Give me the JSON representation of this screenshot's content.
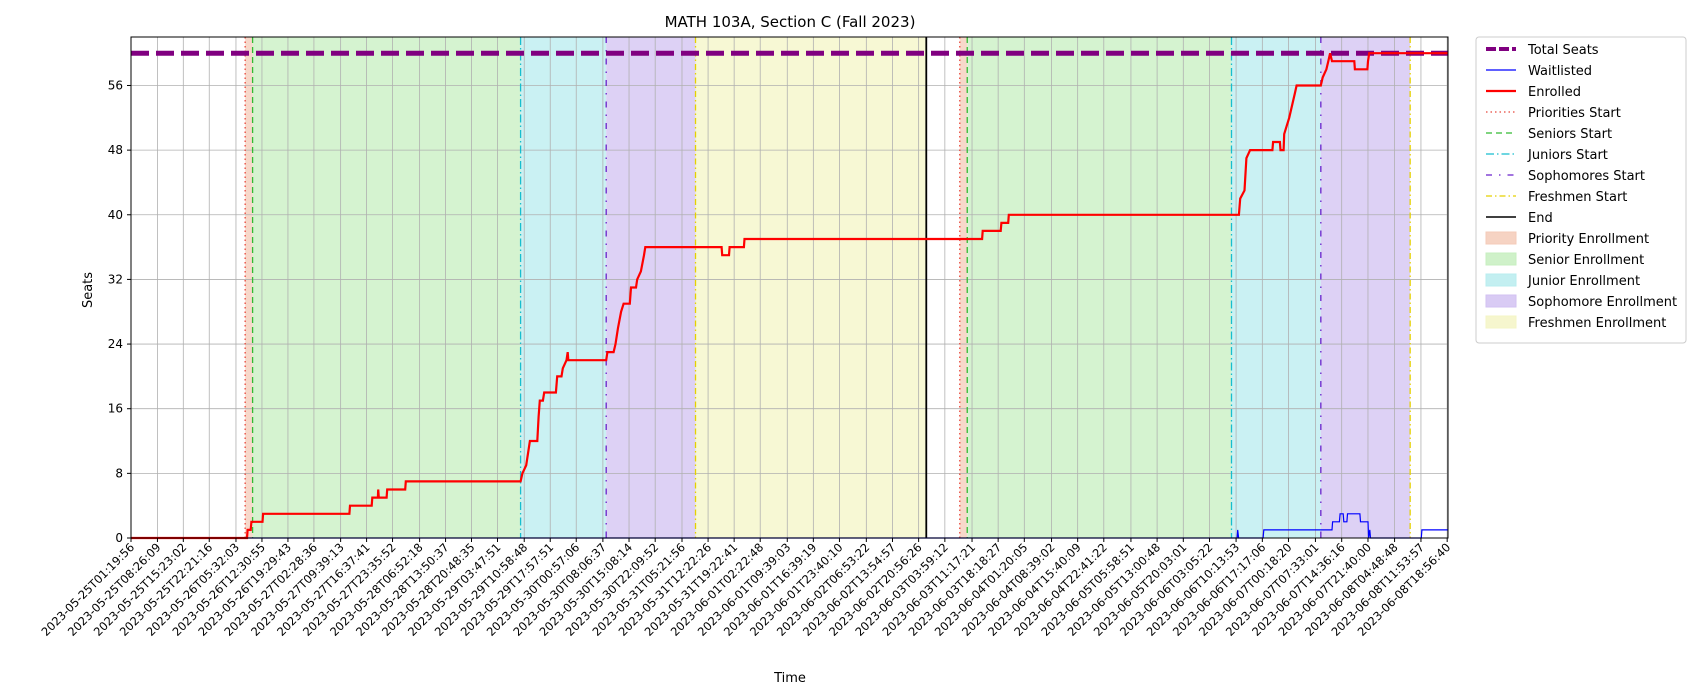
{
  "chart_data": {
    "type": "line",
    "title": "MATH 103A, Section C (Fall 2023)",
    "xlabel": "Time",
    "ylabel": "Seats",
    "ylim": [
      0,
      62
    ],
    "yticks": [
      0,
      8,
      16,
      24,
      32,
      40,
      48,
      56
    ],
    "grid": true,
    "legend_position": "outside-right",
    "xlim": [
      "2023-05-25T01:19:56",
      "2023-06-08T19:10:00"
    ],
    "xticks": [
      "2023-05-25T01:19:56",
      "2023-05-25T08:26:09",
      "2023-05-25T15:23:02",
      "2023-05-25T22:21:16",
      "2023-05-26T05:32:03",
      "2023-05-26T12:30:55",
      "2023-05-26T19:29:43",
      "2023-05-27T02:28:36",
      "2023-05-27T09:39:13",
      "2023-05-27T16:37:41",
      "2023-05-27T23:35:52",
      "2023-05-28T06:52:18",
      "2023-05-28T13:50:37",
      "2023-05-28T20:48:35",
      "2023-05-29T03:47:51",
      "2023-05-29T10:58:48",
      "2023-05-29T17:57:51",
      "2023-05-30T00:57:06",
      "2023-05-30T08:06:37",
      "2023-05-30T15:08:14",
      "2023-05-30T22:09:52",
      "2023-05-31T05:21:56",
      "2023-05-31T12:22:26",
      "2023-05-31T19:22:41",
      "2023-06-01T02:22:48",
      "2023-06-01T09:39:03",
      "2023-06-01T16:39:19",
      "2023-06-01T23:40:10",
      "2023-06-02T06:53:22",
      "2023-06-02T13:54:57",
      "2023-06-02T20:56:26",
      "2023-06-03T03:59:12",
      "2023-06-03T11:17:21",
      "2023-06-03T18:18:27",
      "2023-06-04T01:20:05",
      "2023-06-04T08:39:02",
      "2023-06-04T15:40:09",
      "2023-06-04T22:41:22",
      "2023-06-05T05:58:51",
      "2023-06-05T13:00:48",
      "2023-06-05T20:03:01",
      "2023-06-06T03:05:22",
      "2023-06-06T10:13:53",
      "2023-06-06T17:17:06",
      "2023-06-07T00:18:20",
      "2023-06-07T07:33:01",
      "2023-06-07T14:36:16",
      "2023-06-07T21:40:00",
      "2023-06-08T04:48:48",
      "2023-06-08T11:53:57",
      "2023-06-08T18:56:40"
    ],
    "phases": [
      {
        "name": "Priority Enrollment",
        "start": "2023-05-26T08:00:00",
        "end": "2023-05-26T10:00:00",
        "color": "#f4cbb8"
      },
      {
        "name": "Senior Enrollment",
        "start": "2023-05-26T10:00:00",
        "end": "2023-05-29T10:00:00",
        "color": "#c7efc0"
      },
      {
        "name": "Junior Enrollment",
        "start": "2023-05-29T10:00:00",
        "end": "2023-05-30T09:00:00",
        "color": "#b8ecef"
      },
      {
        "name": "Sophomore Enrollment",
        "start": "2023-05-30T09:00:00",
        "end": "2023-05-31T09:00:00",
        "color": "#d2c2f2"
      },
      {
        "name": "Freshmen Enrollment",
        "start": "2023-05-31T09:00:00",
        "end": "2023-06-02T23:00:00",
        "color": "#f4f5c6"
      },
      {
        "name": "Priority Enrollment",
        "start": "2023-06-03T08:00:00",
        "end": "2023-06-03T10:00:00",
        "color": "#f4cbb8"
      },
      {
        "name": "Senior Enrollment",
        "start": "2023-06-03T10:00:00",
        "end": "2023-06-06T09:00:00",
        "color": "#c7efc0"
      },
      {
        "name": "Junior Enrollment",
        "start": "2023-06-06T09:00:00",
        "end": "2023-06-07T09:00:00",
        "color": "#b8ecef"
      },
      {
        "name": "Sophomore Enrollment",
        "start": "2023-06-07T09:00:00",
        "end": "2023-06-08T09:00:00",
        "color": "#d2c2f2"
      }
    ],
    "markers": [
      {
        "name": "Priorities Start",
        "x": "2023-05-26T08:00:00",
        "color": "#e8463a",
        "dash": "1.5,3"
      },
      {
        "name": "Seniors Start",
        "x": "2023-05-26T10:00:00",
        "color": "#33bb33",
        "dash": "6,4"
      },
      {
        "name": "Juniors Start",
        "x": "2023-05-29T10:00:00",
        "color": "#17becf",
        "dash": "8,3,1.5,3"
      },
      {
        "name": "Sophomores Start",
        "x": "2023-05-30T09:00:00",
        "color": "#6a22cc",
        "dash": "6,7,1.5,7"
      },
      {
        "name": "Freshmen Start",
        "x": "2023-05-31T09:00:00",
        "color": "#e5d100",
        "dash": "6,3,1.5,3"
      },
      {
        "name": "End",
        "x": "2023-06-02T23:00:00",
        "color": "#000000",
        "dash": ""
      },
      {
        "name": "Priorities Start",
        "x": "2023-06-03T08:00:00",
        "color": "#e8463a",
        "dash": "1.5,3"
      },
      {
        "name": "Seniors Start",
        "x": "2023-06-03T10:00:00",
        "color": "#33bb33",
        "dash": "6,4"
      },
      {
        "name": "Juniors Start",
        "x": "2023-06-06T09:00:00",
        "color": "#17becf",
        "dash": "8,3,1.5,3"
      },
      {
        "name": "Sophomores Start",
        "x": "2023-06-07T09:00:00",
        "color": "#6a22cc",
        "dash": "6,7,1.5,7"
      },
      {
        "name": "Freshmen Start",
        "x": "2023-06-08T09:00:00",
        "color": "#e5d100",
        "dash": "6,3,1.5,3"
      }
    ],
    "series": [
      {
        "name": "Total Seats",
        "color": "#800080",
        "style": "dashed",
        "points": [
          [
            "2023-05-25T01:19:56",
            60
          ],
          [
            "2023-06-08T19:10:00",
            60
          ]
        ]
      },
      {
        "name": "Waitlisted",
        "color": "#0000ff",
        "style": "step",
        "points": [
          [
            "2023-05-25T01:19:56",
            0
          ],
          [
            "2023-06-06T10:30:00",
            0
          ],
          [
            "2023-06-06T10:40:00",
            1
          ],
          [
            "2023-06-06T10:55:00",
            0
          ],
          [
            "2023-06-06T17:30:00",
            0
          ],
          [
            "2023-06-06T17:40:00",
            1
          ],
          [
            "2023-06-07T12:00:00",
            1
          ],
          [
            "2023-06-07T12:10:00",
            2
          ],
          [
            "2023-06-07T14:00:00",
            2
          ],
          [
            "2023-06-07T14:10:00",
            3
          ],
          [
            "2023-06-07T15:00:00",
            3
          ],
          [
            "2023-06-07T15:10:00",
            2
          ],
          [
            "2023-06-07T16:00:00",
            2
          ],
          [
            "2023-06-07T16:10:00",
            3
          ],
          [
            "2023-06-07T19:30:00",
            3
          ],
          [
            "2023-06-07T19:40:00",
            2
          ],
          [
            "2023-06-07T21:40:00",
            2
          ],
          [
            "2023-06-07T21:50:00",
            0
          ],
          [
            "2023-06-07T22:10:00",
            1
          ],
          [
            "2023-06-07T22:20:00",
            0
          ],
          [
            "2023-06-08T12:00:00",
            0
          ],
          [
            "2023-06-08T12:10:00",
            1
          ],
          [
            "2023-06-08T19:10:00",
            1
          ]
        ]
      },
      {
        "name": "Enrolled",
        "color": "#ff0000",
        "style": "step",
        "points": [
          [
            "2023-05-25T01:19:56",
            0
          ],
          [
            "2023-05-26T08:30:00",
            0
          ],
          [
            "2023-05-26T08:40:00",
            1
          ],
          [
            "2023-05-26T09:30:00",
            1
          ],
          [
            "2023-05-26T09:40:00",
            2
          ],
          [
            "2023-05-26T12:40:00",
            2
          ],
          [
            "2023-05-26T12:50:00",
            3
          ],
          [
            "2023-05-27T12:00:00",
            3
          ],
          [
            "2023-05-27T12:10:00",
            4
          ],
          [
            "2023-05-27T18:00:00",
            4
          ],
          [
            "2023-05-27T18:10:00",
            5
          ],
          [
            "2023-05-27T19:40:00",
            5
          ],
          [
            "2023-05-27T19:45:00",
            6
          ],
          [
            "2023-05-27T19:55:00",
            5
          ],
          [
            "2023-05-27T22:00:00",
            5
          ],
          [
            "2023-05-27T22:10:00",
            6
          ],
          [
            "2023-05-28T03:00:00",
            6
          ],
          [
            "2023-05-28T03:10:00",
            7
          ],
          [
            "2023-05-29T10:00:00",
            7
          ],
          [
            "2023-05-29T10:30:00",
            8
          ],
          [
            "2023-05-29T11:30:00",
            9
          ],
          [
            "2023-05-29T12:30:00",
            12
          ],
          [
            "2023-05-29T14:30:00",
            12
          ],
          [
            "2023-05-29T14:50:00",
            15
          ],
          [
            "2023-05-29T15:10:00",
            17
          ],
          [
            "2023-05-29T16:00:00",
            17
          ],
          [
            "2023-05-29T16:20:00",
            18
          ],
          [
            "2023-05-29T19:30:00",
            18
          ],
          [
            "2023-05-29T19:50:00",
            20
          ],
          [
            "2023-05-29T21:00:00",
            20
          ],
          [
            "2023-05-29T21:20:00",
            21
          ],
          [
            "2023-05-29T22:20:00",
            22
          ],
          [
            "2023-05-29T22:40:00",
            23
          ],
          [
            "2023-05-29T22:50:00",
            22
          ],
          [
            "2023-05-30T09:00:00",
            22
          ],
          [
            "2023-05-30T09:20:00",
            23
          ],
          [
            "2023-05-30T11:00:00",
            23
          ],
          [
            "2023-05-30T11:30:00",
            24
          ],
          [
            "2023-05-30T12:10:00",
            26
          ],
          [
            "2023-05-30T13:00:00",
            28
          ],
          [
            "2023-05-30T13:40:00",
            29
          ],
          [
            "2023-05-30T15:20:00",
            29
          ],
          [
            "2023-05-30T15:40:00",
            31
          ],
          [
            "2023-05-30T17:00:00",
            31
          ],
          [
            "2023-05-30T17:20:00",
            32
          ],
          [
            "2023-05-30T18:20:00",
            33
          ],
          [
            "2023-05-30T19:10:00",
            35
          ],
          [
            "2023-05-30T19:30:00",
            36
          ],
          [
            "2023-05-31T16:00:00",
            36
          ],
          [
            "2023-05-31T16:10:00",
            35
          ],
          [
            "2023-05-31T18:00:00",
            35
          ],
          [
            "2023-05-31T18:10:00",
            36
          ],
          [
            "2023-05-31T22:00:00",
            36
          ],
          [
            "2023-05-31T22:10:00",
            37
          ],
          [
            "2023-06-03T14:00:00",
            37
          ],
          [
            "2023-06-03T14:10:00",
            38
          ],
          [
            "2023-06-03T19:00:00",
            38
          ],
          [
            "2023-06-03T19:10:00",
            39
          ],
          [
            "2023-06-03T21:00:00",
            39
          ],
          [
            "2023-06-03T21:10:00",
            40
          ],
          [
            "2023-06-06T11:00:00",
            40
          ],
          [
            "2023-06-06T11:20:00",
            42
          ],
          [
            "2023-06-06T12:30:00",
            43
          ],
          [
            "2023-06-06T13:00:00",
            47
          ],
          [
            "2023-06-06T14:00:00",
            48
          ],
          [
            "2023-06-06T20:00:00",
            48
          ],
          [
            "2023-06-06T20:10:00",
            49
          ],
          [
            "2023-06-06T22:00:00",
            49
          ],
          [
            "2023-06-06T22:10:00",
            48
          ],
          [
            "2023-06-06T23:00:00",
            48
          ],
          [
            "2023-06-06T23:10:00",
            50
          ],
          [
            "2023-06-07T00:30:00",
            52
          ],
          [
            "2023-06-07T02:00:00",
            55
          ],
          [
            "2023-06-07T02:30:00",
            56
          ],
          [
            "2023-06-07T09:00:00",
            56
          ],
          [
            "2023-06-07T09:30:00",
            57
          ],
          [
            "2023-06-07T10:30:00",
            58
          ],
          [
            "2023-06-07T11:00:00",
            59
          ],
          [
            "2023-06-07T11:30:00",
            60
          ],
          [
            "2023-06-07T12:00:00",
            59
          ],
          [
            "2023-06-07T18:00:00",
            59
          ],
          [
            "2023-06-07T18:10:00",
            58
          ],
          [
            "2023-06-07T21:30:00",
            58
          ],
          [
            "2023-06-07T21:40:00",
            59
          ],
          [
            "2023-06-07T22:00:00",
            60
          ],
          [
            "2023-06-08T19:10:00",
            60
          ]
        ]
      }
    ],
    "legend": [
      {
        "label": "Total Seats",
        "kind": "line",
        "color": "#800080",
        "dash": "10,3",
        "width": 4
      },
      {
        "label": "Waitlisted",
        "kind": "line",
        "color": "#0000ff",
        "dash": "",
        "width": 1.2
      },
      {
        "label": "Enrolled",
        "kind": "line",
        "color": "#ff0000",
        "dash": "",
        "width": 2.2
      },
      {
        "label": "Priorities Start",
        "kind": "line",
        "color": "#e8463a",
        "dash": "1.5,3",
        "width": 1.3
      },
      {
        "label": "Seniors Start",
        "kind": "line",
        "color": "#33bb33",
        "dash": "6,4",
        "width": 1.3
      },
      {
        "label": "Juniors Start",
        "kind": "line",
        "color": "#17becf",
        "dash": "8,3,1.5,3",
        "width": 1.3
      },
      {
        "label": "Sophomores Start",
        "kind": "line",
        "color": "#6a22cc",
        "dash": "6,7,1.5,7",
        "width": 1.3
      },
      {
        "label": "Freshmen Start",
        "kind": "line",
        "color": "#e5d100",
        "dash": "6,3,1.5,3",
        "width": 1.3
      },
      {
        "label": "End",
        "kind": "line",
        "color": "#000000",
        "dash": "",
        "width": 1.5
      },
      {
        "label": "Priority Enrollment",
        "kind": "patch",
        "color": "#f4cbb8"
      },
      {
        "label": "Senior Enrollment",
        "kind": "patch",
        "color": "#c7efc0"
      },
      {
        "label": "Junior Enrollment",
        "kind": "patch",
        "color": "#b8ecef"
      },
      {
        "label": "Sophomore Enrollment",
        "kind": "patch",
        "color": "#d2c2f2"
      },
      {
        "label": "Freshmen Enrollment",
        "kind": "patch",
        "color": "#f4f5c6"
      }
    ]
  }
}
